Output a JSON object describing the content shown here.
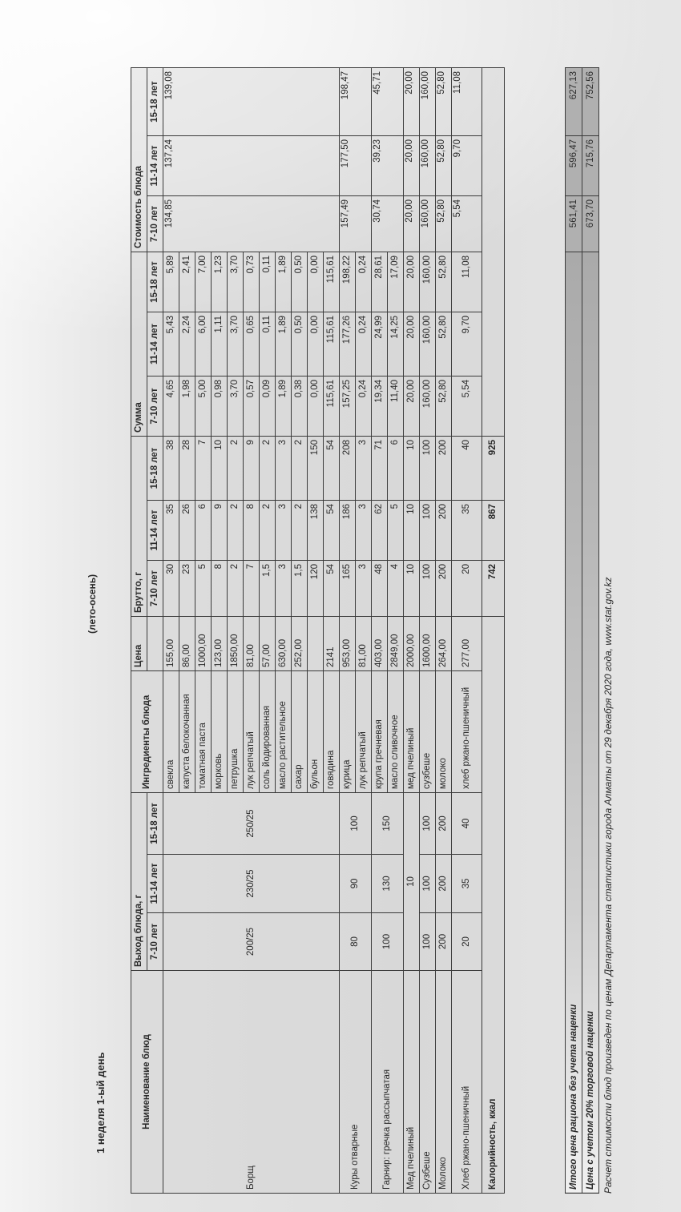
{
  "title": "1 неделя 1-ый день",
  "season": "(лето-осень)",
  "headers": {
    "dish": "Наименование блюд",
    "output": "Выход блюда, г",
    "ingredients": "Ингредиенты блюда",
    "price": "Цена",
    "brutto": "Брутто, г",
    "sum": "Сумма",
    "cost": "Стоимость блюда",
    "ages": [
      "7-10 лет",
      "11-14 лет",
      "15-18 лет"
    ]
  },
  "dishes": [
    {
      "name": "Борщ",
      "output": [
        "200/25",
        "230/25",
        "250/25"
      ],
      "cost": [
        "134,85",
        "137,24",
        "139,08"
      ],
      "ingredients": [
        {
          "name": "свекла",
          "price": "155,00",
          "brutto": [
            "30",
            "35",
            "38"
          ],
          "sum": [
            "4,65",
            "5,43",
            "5,89"
          ]
        },
        {
          "name": "капуста белокочанная",
          "price": "86,00",
          "brutto": [
            "23",
            "26",
            "28"
          ],
          "sum": [
            "1,98",
            "2,24",
            "2,41"
          ]
        },
        {
          "name": "томатная паста",
          "price": "1000,00",
          "brutto": [
            "5",
            "6",
            "7"
          ],
          "sum": [
            "5,00",
            "6,00",
            "7,00"
          ]
        },
        {
          "name": "морковь",
          "price": "123,00",
          "brutto": [
            "8",
            "9",
            "10"
          ],
          "sum": [
            "0,98",
            "1,11",
            "1,23"
          ]
        },
        {
          "name": "петрушка",
          "price": "1850,00",
          "brutto": [
            "2",
            "2",
            "2"
          ],
          "sum": [
            "3,70",
            "3,70",
            "3,70"
          ]
        },
        {
          "name": "лук репчатый",
          "price": "81,00",
          "brutto": [
            "7",
            "8",
            "9"
          ],
          "sum": [
            "0,57",
            "0,65",
            "0,73"
          ]
        },
        {
          "name": "соль йодированная",
          "price": "57,00",
          "brutto": [
            "1,5",
            "2",
            "2"
          ],
          "sum": [
            "0,09",
            "0,11",
            "0,11"
          ]
        },
        {
          "name": "масло растительное",
          "price": "630,00",
          "brutto": [
            "3",
            "3",
            "3"
          ],
          "sum": [
            "1,89",
            "1,89",
            "1,89"
          ]
        },
        {
          "name": "сахар",
          "price": "252,00",
          "brutto": [
            "1,5",
            "2",
            "2"
          ],
          "sum": [
            "0,38",
            "0,50",
            "0,50"
          ]
        },
        {
          "name": "бульон",
          "price": "",
          "brutto": [
            "120",
            "138",
            "150"
          ],
          "sum": [
            "0,00",
            "0,00",
            "0,00"
          ]
        },
        {
          "name": "говядина",
          "price": "2141",
          "brutto": [
            "54",
            "54",
            "54"
          ],
          "sum": [
            "115,61",
            "115,61",
            "115,61"
          ]
        }
      ]
    },
    {
      "name": "Куры отварные",
      "output": [
        "80",
        "90",
        "100"
      ],
      "cost": [
        "157,49",
        "177,50",
        "198,47"
      ],
      "ingredients": [
        {
          "name": "курица",
          "price": "953,00",
          "brutto": [
            "165",
            "186",
            "208"
          ],
          "sum": [
            "157,25",
            "177,26",
            "198,22"
          ]
        },
        {
          "name": "лук репчатый",
          "price": "81,00",
          "brutto": [
            "3",
            "3",
            "3"
          ],
          "sum": [
            "0,24",
            "0,24",
            "0,24"
          ]
        }
      ]
    },
    {
      "name": "Гарнир: гречка рассыпчатая",
      "output": [
        "100",
        "130",
        "150"
      ],
      "cost": [
        "30,74",
        "39,23",
        "45,71"
      ],
      "ingredients": [
        {
          "name": "крупа гречневая",
          "price": "403,00",
          "brutto": [
            "48",
            "62",
            "71"
          ],
          "sum": [
            "19,34",
            "24,99",
            "28,61"
          ]
        },
        {
          "name": "масло сливочное",
          "price": "2849,00",
          "brutto": [
            "4",
            "5",
            "6"
          ],
          "sum": [
            "11,40",
            "14,25",
            "17,09"
          ]
        }
      ]
    },
    {
      "name": "Мед пчелиный",
      "output": [
        "10"
      ],
      "cost": [
        "20,00",
        "20,00",
        "20,00"
      ],
      "ingredients": [
        {
          "name": "мед пчелиный",
          "price": "2000,00",
          "brutto": [
            "10",
            "10",
            "10"
          ],
          "sum": [
            "20,00",
            "20,00",
            "20,00"
          ]
        }
      ]
    },
    {
      "name": "Сузбеше",
      "output": [
        "100",
        "100",
        "100"
      ],
      "cost": [
        "160,00",
        "160,00",
        "160,00"
      ],
      "ingredients": [
        {
          "name": "сузбеше",
          "price": "1600,00",
          "brutto": [
            "100",
            "100",
            "100"
          ],
          "sum": [
            "160,00",
            "160,00",
            "160,00"
          ]
        }
      ]
    },
    {
      "name": "Молоко",
      "output": [
        "200",
        "200",
        "200"
      ],
      "cost": [
        "52,80",
        "52,80",
        "52,80"
      ],
      "ingredients": [
        {
          "name": "молоко",
          "price": "264,00",
          "brutto": [
            "200",
            "200",
            "200"
          ],
          "sum": [
            "52,80",
            "52,80",
            "52,80"
          ]
        }
      ]
    },
    {
      "name": "Хлеб ржано-пшеничный",
      "output": [
        "20",
        "35",
        "40"
      ],
      "cost": [
        "5,54",
        "9,70",
        "11,08"
      ],
      "ingredients": [
        {
          "name": "хлеб ржано-пшеничный",
          "price": "277,00",
          "brutto": [
            "20",
            "35",
            "40"
          ],
          "sum": [
            "5,54",
            "9,70",
            "11,08"
          ],
          "wrap": true
        }
      ]
    }
  ],
  "calories": {
    "label": "Калорийность, ккал",
    "values": [
      "742",
      "867",
      "925"
    ]
  },
  "totals": [
    {
      "label": "Итого цена рациона без учета наценки",
      "values": [
        "561,41",
        "596,47",
        "627,13"
      ]
    },
    {
      "label": "Цена с учетом 20% торговой наценки",
      "values": [
        "673,70",
        "715,76",
        "752,56"
      ]
    }
  ],
  "footnote": "Расчет стоимости блюд произведен по ценам Департамента статистики города Алматы от 29 декабря 2020 года, www.stat.gov.kz"
}
